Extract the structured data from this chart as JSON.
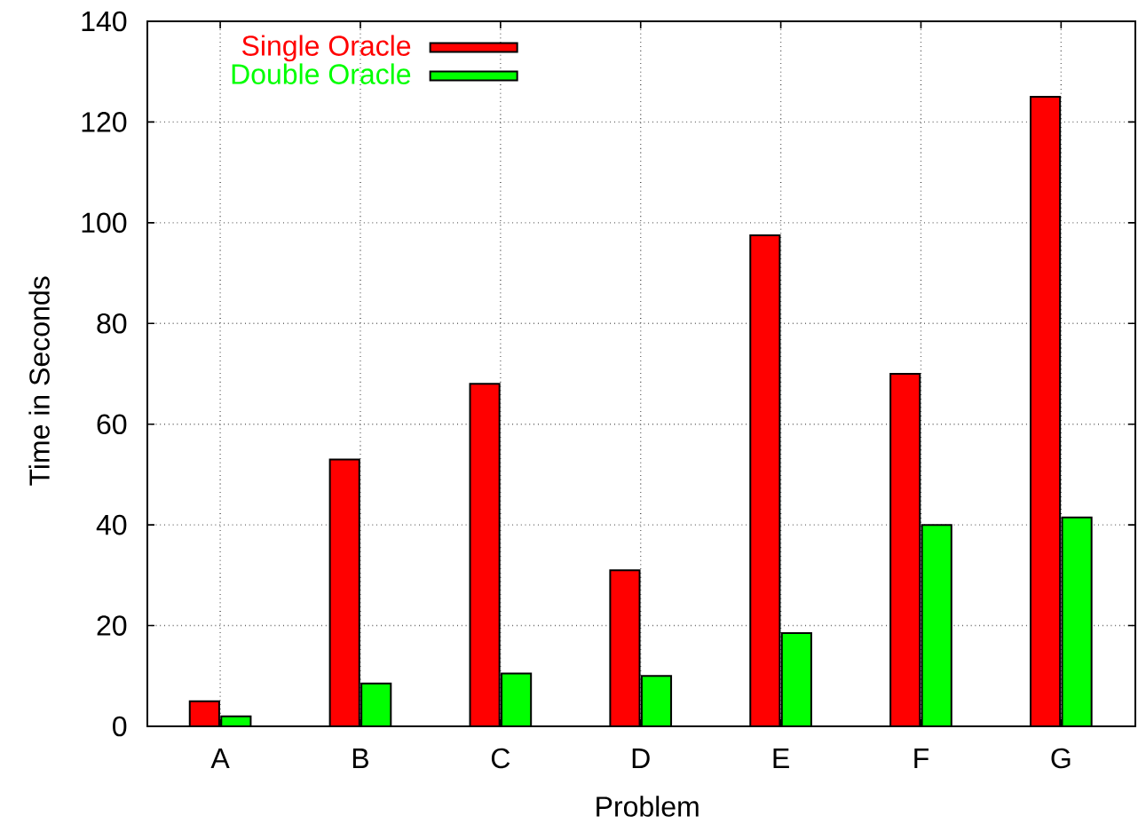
{
  "chart_data": {
    "type": "bar",
    "xlabel": "Problem",
    "ylabel": "Time in Seconds",
    "categories": [
      "A",
      "B",
      "C",
      "D",
      "E",
      "F",
      "G"
    ],
    "series": [
      {
        "name": "Single Oracle",
        "color": "#ff0000",
        "values": [
          5,
          53,
          68,
          31,
          97.5,
          70,
          125
        ]
      },
      {
        "name": "Double Oracle",
        "color": "#00ff00",
        "values": [
          2,
          8.5,
          10.5,
          10,
          18.5,
          40,
          41.5
        ]
      }
    ],
    "ylim": [
      0,
      140
    ],
    "yticks": [
      0,
      20,
      40,
      60,
      80,
      100,
      120,
      140
    ],
    "grid": true,
    "legend": "top left"
  }
}
